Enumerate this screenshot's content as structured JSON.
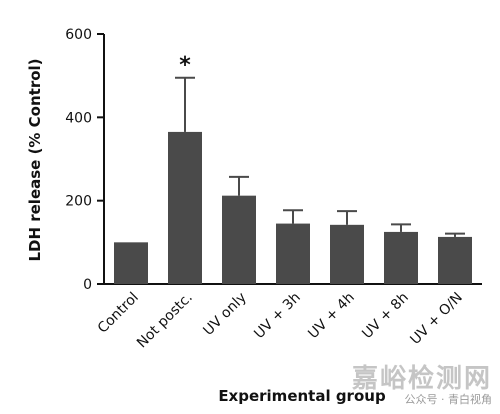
{
  "chart_data": {
    "type": "bar",
    "title": "",
    "xlabel": "Experimental group",
    "ylabel": "LDH release (% Control)",
    "ylim": [
      0,
      600
    ],
    "yticks": [
      0,
      200,
      400,
      600
    ],
    "categories": [
      "Control",
      "Not postc.",
      "UV only",
      "UV + 3h",
      "UV + 4h",
      "UV + 8h",
      "UV + O/N"
    ],
    "values": [
      100,
      365,
      212,
      145,
      142,
      125,
      113
    ],
    "error": [
      0,
      130,
      45,
      32,
      33,
      18,
      8
    ],
    "significance": [
      "",
      "*",
      "",
      "",
      "",
      "",
      ""
    ],
    "bar_color": "#4a4a4a",
    "grid": false,
    "legend": "none"
  },
  "watermark": {
    "main": "嘉峪检测网",
    "sub": "公众号 · 青白视角"
  }
}
